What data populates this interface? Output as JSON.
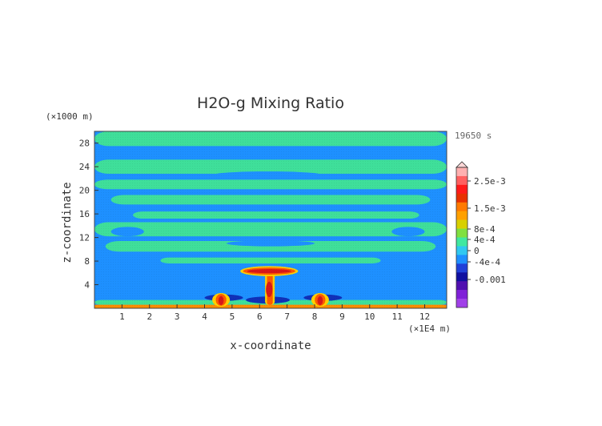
{
  "chart_data": {
    "type": "heatmap",
    "title": "H2O-g Mixing Ratio",
    "xlabel": "x-coordinate",
    "ylabel": "z-coordinate",
    "x_unit": "(×1E4 m)",
    "y_unit": "(×1000 m)",
    "time_label": "19650 s",
    "xlim": [
      0,
      12.8
    ],
    "ylim": [
      0,
      30
    ],
    "x_ticks": [
      "1",
      "2",
      "3",
      "4",
      "5",
      "6",
      "7",
      "8",
      "9",
      "10",
      "11",
      "12"
    ],
    "y_ticks": [
      "4",
      "8",
      "12",
      "16",
      "20",
      "24",
      "28"
    ],
    "colorbar": {
      "labels": [
        "2.5e-3",
        "1.5e-3",
        "8e-4",
        "4e-4",
        "0",
        "-4e-4",
        "-0.001"
      ],
      "colors": [
        "#ffb0b0",
        "#ff6060",
        "#ff1a1a",
        "#e83000",
        "#ff7a00",
        "#ffa000",
        "#d8d000",
        "#80e040",
        "#40e8a0",
        "#30c8f0",
        "#1e90ff",
        "#2040d8",
        "#1010a0",
        "#5010b0",
        "#8020d8",
        "#a040e8"
      ]
    },
    "colors": {
      "background": "#1e90ff",
      "band": "#3fdf9a",
      "plume": "#ff5a00",
      "core": "#d81818",
      "surface": "#ff8c00"
    }
  }
}
